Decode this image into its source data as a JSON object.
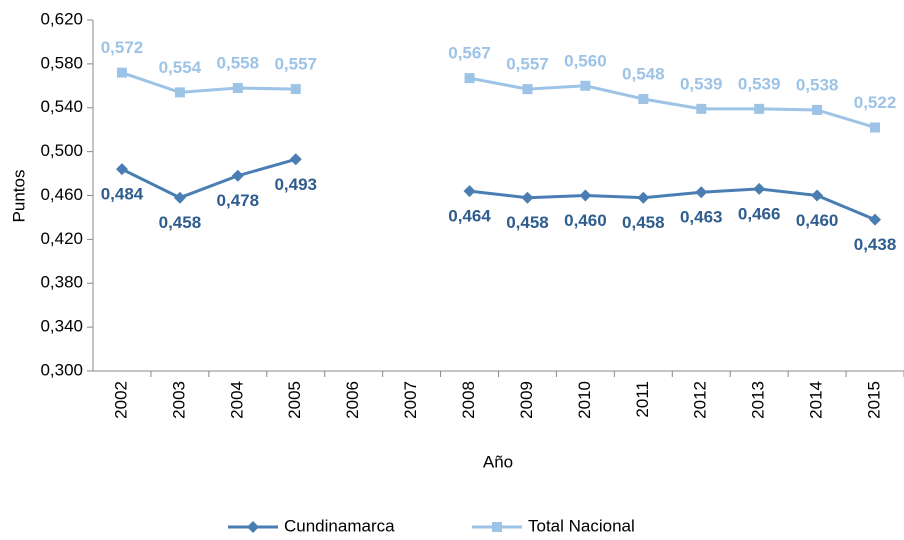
{
  "chart_data": {
    "type": "line",
    "x_label": "Año",
    "y_label": "Puntos",
    "categories": [
      "2002",
      "2003",
      "2004",
      "2005",
      "2006",
      "2007",
      "2008",
      "2009",
      "2010",
      "2011",
      "2012",
      "2013",
      "2014",
      "2015"
    ],
    "series": [
      {
        "name": "Cundinamarca",
        "color": "#4a7eb3",
        "label_color": "#2e5d8e",
        "marker": "diamond",
        "values": [
          0.484,
          0.458,
          0.478,
          0.493,
          null,
          null,
          0.464,
          0.458,
          0.46,
          0.458,
          0.463,
          0.466,
          0.46,
          0.438
        ],
        "value_labels": [
          "0,484",
          "0,458",
          "0,478",
          "0,493",
          null,
          null,
          "0,464",
          "0,458",
          "0,460",
          "0,458",
          "0,463",
          "0,466",
          "0,460",
          "0,438"
        ]
      },
      {
        "name": "Total Nacional",
        "color": "#9dc3e6",
        "label_color": "#9dc3e6",
        "marker": "square",
        "values": [
          0.572,
          0.554,
          0.558,
          0.557,
          null,
          null,
          0.567,
          0.557,
          0.56,
          0.548,
          0.539,
          0.539,
          0.538,
          0.522
        ],
        "value_labels": [
          "0,572",
          "0,554",
          "0,558",
          "0,557",
          null,
          null,
          "0,567",
          "0,557",
          "0,560",
          "0,548",
          "0,539",
          "0,539",
          "0,538",
          "0,522"
        ]
      }
    ],
    "ylim": [
      0.3,
      0.62
    ],
    "yticks": [
      {
        "value": 0.3,
        "label": "0,300"
      },
      {
        "value": 0.34,
        "label": "0,340"
      },
      {
        "value": 0.38,
        "label": "0,380"
      },
      {
        "value": 0.42,
        "label": "0,420"
      },
      {
        "value": 0.46,
        "label": "0,460"
      },
      {
        "value": 0.5,
        "label": "0,500"
      },
      {
        "value": 0.54,
        "label": "0,540"
      },
      {
        "value": 0.58,
        "label": "0,580"
      },
      {
        "value": 0.62,
        "label": "0,620"
      }
    ],
    "grid": false,
    "legend": "bottom"
  }
}
